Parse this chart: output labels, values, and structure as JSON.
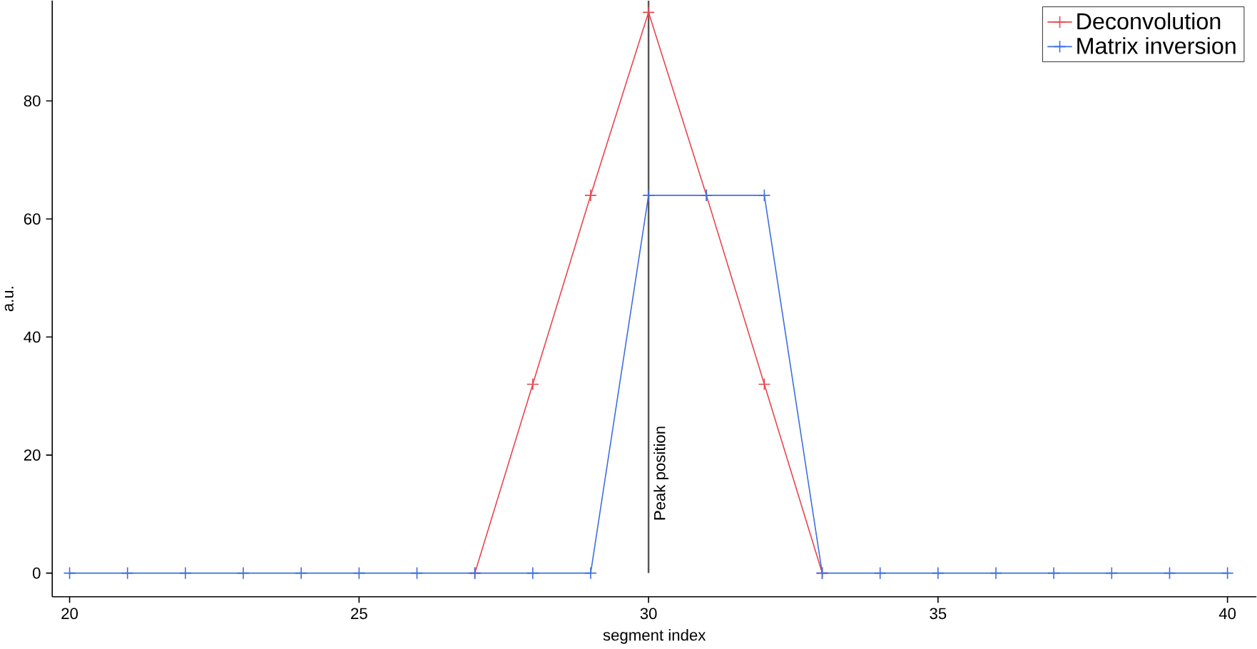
{
  "chart_data": {
    "type": "line",
    "xlabel": "segment index",
    "ylabel": "a.u.",
    "x": [
      20,
      21,
      22,
      23,
      24,
      25,
      26,
      27,
      28,
      29,
      30,
      31,
      32,
      33,
      34,
      35,
      36,
      37,
      38,
      39,
      40
    ],
    "series": [
      {
        "name": "Deconvolution",
        "color": "#e8474f",
        "values": [
          null,
          null,
          null,
          null,
          null,
          null,
          null,
          0,
          32,
          64,
          95,
          64,
          32,
          0,
          null,
          null,
          null,
          null,
          null,
          null,
          null
        ]
      },
      {
        "name": "Matrix inversion",
        "color": "#3f6fe0",
        "values": [
          0,
          0,
          0,
          0,
          0,
          0,
          0,
          0,
          0,
          0,
          64,
          64,
          64,
          0,
          0,
          0,
          0,
          0,
          0,
          0,
          0
        ]
      }
    ],
    "xlim": [
      19.7,
      40.5
    ],
    "ylim": [
      -4,
      97
    ],
    "xticks": [
      20,
      25,
      30,
      35,
      40
    ],
    "yticks": [
      0,
      20,
      40,
      60,
      80
    ],
    "ref_lines": [
      {
        "axis": "x",
        "value": 30,
        "label": "Peak position",
        "color": "#555555"
      }
    ],
    "marker": "cross",
    "legend": "top right",
    "grid": false
  }
}
